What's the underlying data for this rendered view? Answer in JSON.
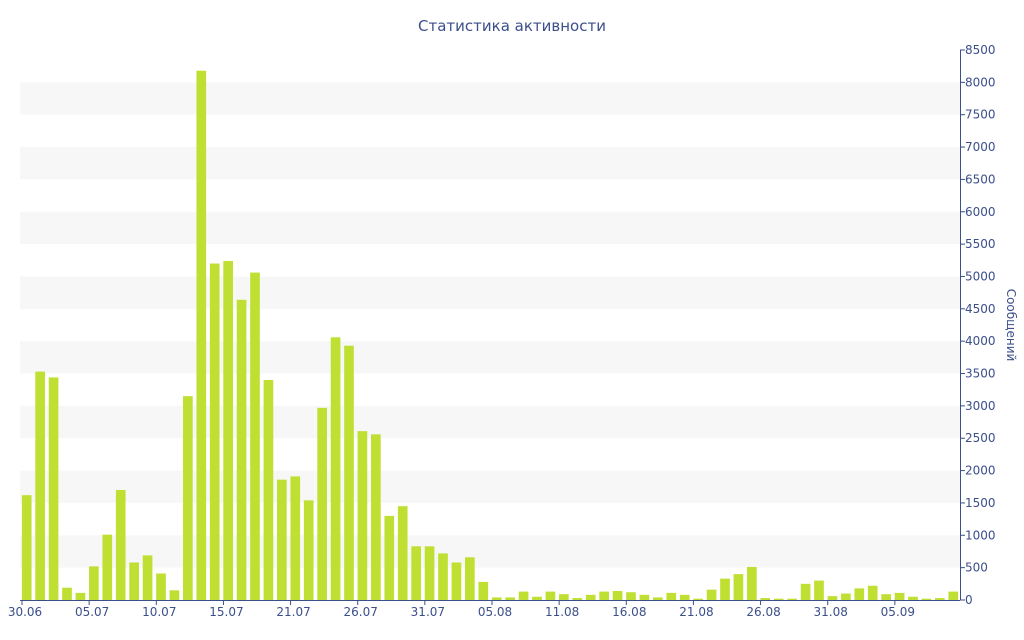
{
  "chart_data": {
    "type": "bar",
    "title": "Статистика активности",
    "ylabel": "Сообщений",
    "xlabel": "",
    "ylim": [
      0,
      8500
    ],
    "y_ticks": [
      0,
      500,
      1000,
      1500,
      2000,
      2500,
      3000,
      3500,
      4000,
      4500,
      5000,
      5500,
      6000,
      6500,
      7000,
      7500,
      8000,
      8500
    ],
    "y_axis_position": "right",
    "grid": "alternating horizontal bands",
    "x_tick_labels": [
      {
        "label": "30.06",
        "index": 0
      },
      {
        "label": "05.07",
        "index": 5
      },
      {
        "label": "10.07",
        "index": 10
      },
      {
        "label": "15.07",
        "index": 15
      },
      {
        "label": "21.07",
        "index": 20
      },
      {
        "label": "26.07",
        "index": 25
      },
      {
        "label": "31.07",
        "index": 30
      },
      {
        "label": "05.08",
        "index": 35
      },
      {
        "label": "11.08",
        "index": 40
      },
      {
        "label": "16.08",
        "index": 45
      },
      {
        "label": "21.08",
        "index": 50
      },
      {
        "label": "26.08",
        "index": 55
      },
      {
        "label": "31.08",
        "index": 60
      },
      {
        "label": "05.09",
        "index": 65
      }
    ],
    "values": [
      1620,
      3530,
      3440,
      190,
      110,
      520,
      1010,
      1700,
      580,
      690,
      410,
      150,
      3150,
      8180,
      5200,
      5240,
      4640,
      5060,
      3400,
      1860,
      1910,
      1540,
      2970,
      4060,
      3930,
      2610,
      2560,
      1300,
      1450,
      830,
      830,
      720,
      580,
      660,
      280,
      40,
      40,
      130,
      50,
      130,
      90,
      30,
      80,
      130,
      140,
      120,
      80,
      40,
      110,
      80,
      20,
      160,
      330,
      400,
      510,
      30,
      20,
      20,
      250,
      300,
      60,
      100,
      180,
      220,
      90,
      110,
      50,
      20,
      30,
      130
    ],
    "colors": {
      "bar": "#bfe033",
      "band": "#f7f7f7",
      "axis": "#3b4f8a",
      "text": "#3b4f8a"
    }
  }
}
